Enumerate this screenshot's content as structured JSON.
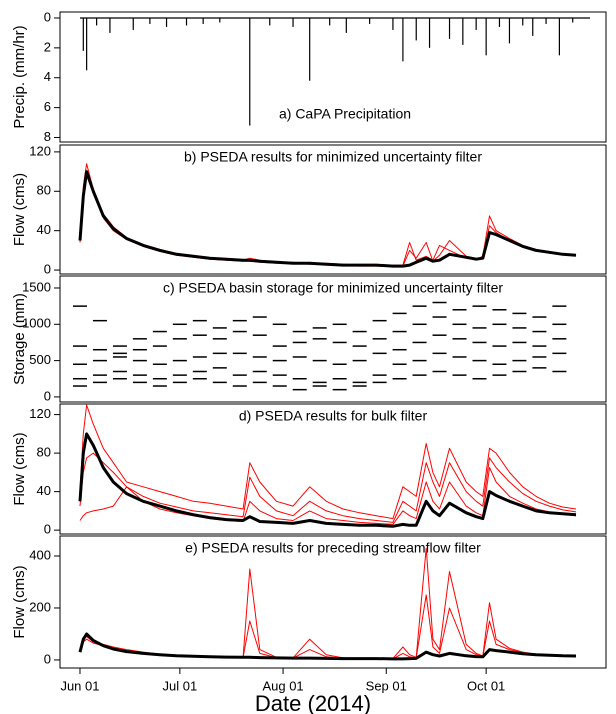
{
  "chart_data": [
    {
      "type": "spike",
      "title": "a) CaPA Precipitation",
      "ylabel": "Precip. (mm/hr)",
      "color": "#000000",
      "xlim": [
        "2014-05-26",
        "2014-11-06"
      ],
      "ylim": [
        8.3,
        -0.4
      ],
      "yticks": [
        0,
        2,
        4,
        6,
        8
      ],
      "x": [
        "2014-06-02",
        "2014-06-03",
        "2014-06-06",
        "2014-06-10",
        "2014-06-17",
        "2014-06-22",
        "2014-06-27",
        "2014-07-03",
        "2014-07-08",
        "2014-07-13",
        "2014-07-22",
        "2014-07-28",
        "2014-08-04",
        "2014-08-09",
        "2014-08-15",
        "2014-08-20",
        "2014-08-27",
        "2014-09-03",
        "2014-09-06",
        "2014-09-10",
        "2014-09-14",
        "2014-09-20",
        "2014-09-24",
        "2014-09-28",
        "2014-10-01",
        "2014-10-05",
        "2014-10-08",
        "2014-10-12",
        "2014-10-15",
        "2014-10-19",
        "2014-10-23",
        "2014-10-27"
      ],
      "values": [
        2.2,
        3.5,
        0.5,
        1.0,
        0.8,
        0.4,
        0.6,
        0.5,
        0.4,
        0.3,
        7.2,
        0.5,
        0.6,
        4.2,
        0.5,
        1.0,
        0.4,
        0.8,
        2.9,
        1.5,
        2.0,
        1.4,
        1.8,
        0.8,
        2.5,
        0.6,
        1.7,
        0.5,
        1.2,
        0.4,
        2.5,
        0.3
      ]
    },
    {
      "type": "line",
      "title": "b) PSEDA results for minimized uncertainty filter",
      "ylabel": "Flow (cms)",
      "xlim": [
        "2014-05-26",
        "2014-11-06"
      ],
      "ylim": [
        -4,
        127
      ],
      "yticks": [
        0,
        40,
        80,
        120
      ],
      "x": [
        "2014-06-01",
        "2014-06-02",
        "2014-06-03",
        "2014-06-05",
        "2014-06-08",
        "2014-06-11",
        "2014-06-15",
        "2014-06-20",
        "2014-06-25",
        "2014-06-30",
        "2014-07-05",
        "2014-07-10",
        "2014-07-15",
        "2014-07-20",
        "2014-07-22",
        "2014-07-25",
        "2014-07-30",
        "2014-08-04",
        "2014-08-09",
        "2014-08-14",
        "2014-08-19",
        "2014-08-24",
        "2014-08-29",
        "2014-09-03",
        "2014-09-06",
        "2014-09-08",
        "2014-09-10",
        "2014-09-13",
        "2014-09-15",
        "2014-09-17",
        "2014-09-20",
        "2014-09-25",
        "2014-09-28",
        "2014-09-30",
        "2014-10-02",
        "2014-10-04",
        "2014-10-08",
        "2014-10-12",
        "2014-10-16",
        "2014-10-20",
        "2014-10-24",
        "2014-10-28"
      ],
      "series": [
        {
          "color": "#ff0000",
          "width": 1,
          "values": [
            32,
            85,
            108,
            82,
            57,
            44,
            33,
            26,
            21,
            17,
            14,
            12,
            11,
            10,
            12,
            10,
            8,
            8,
            7,
            7,
            6,
            5,
            5,
            5,
            5,
            28,
            10,
            14,
            10,
            25,
            20,
            12,
            11,
            14,
            55,
            40,
            32,
            25,
            21,
            18,
            16,
            15
          ]
        },
        {
          "color": "#ff0000",
          "width": 1,
          "values": [
            28,
            70,
            96,
            78,
            53,
            40,
            31,
            24,
            19,
            15,
            13,
            11,
            10,
            9,
            9,
            8,
            7,
            7,
            6,
            6,
            5,
            4,
            4,
            4,
            4,
            20,
            12,
            28,
            9,
            15,
            30,
            14,
            12,
            13,
            45,
            38,
            30,
            24,
            20,
            17,
            16,
            15
          ]
        },
        {
          "color": "#000000",
          "width": 3,
          "values": [
            30,
            75,
            100,
            80,
            55,
            42,
            32,
            25,
            20,
            16,
            14,
            12,
            11,
            10,
            10,
            9,
            8,
            7,
            7,
            6,
            5,
            5,
            5,
            4,
            4,
            5,
            8,
            12,
            9,
            10,
            16,
            13,
            11,
            12,
            38,
            36,
            30,
            24,
            20,
            18,
            16,
            15
          ]
        }
      ]
    },
    {
      "type": "scatter",
      "title": "c) PSEDA basin storage for minimized uncertainty filter",
      "ylabel": "Storage (mm)",
      "xlim": [
        "2014-05-26",
        "2014-11-06"
      ],
      "ylim": [
        -70,
        1665
      ],
      "yticks": [
        0,
        500,
        1000,
        1500
      ],
      "x": [
        "2014-06-01",
        "2014-06-07",
        "2014-06-13",
        "2014-06-19",
        "2014-06-25",
        "2014-07-01",
        "2014-07-07",
        "2014-07-13",
        "2014-07-19",
        "2014-07-25",
        "2014-07-31",
        "2014-08-06",
        "2014-08-12",
        "2014-08-18",
        "2014-08-24",
        "2014-08-30",
        "2014-09-05",
        "2014-09-11",
        "2014-09-17",
        "2014-09-23",
        "2014-09-29",
        "2014-10-05",
        "2014-10-11",
        "2014-10-17",
        "2014-10-23"
      ],
      "series": [
        {
          "color": "#000000",
          "values": [
            1250,
            1050,
            700,
            800,
            900,
            1000,
            1050,
            950,
            1050,
            1100,
            1000,
            900,
            950,
            1000,
            900,
            1050,
            1150,
            1250,
            1300,
            1200,
            1250,
            1200,
            1150,
            1100,
            1250
          ]
        },
        {
          "color": "#000000",
          "values": [
            700,
            650,
            600,
            650,
            700,
            800,
            850,
            800,
            900,
            850,
            700,
            750,
            800,
            750,
            700,
            800,
            900,
            1000,
            1100,
            1000,
            950,
            1000,
            950,
            900,
            1000
          ]
        },
        {
          "color": "#000000",
          "values": [
            450,
            500,
            550,
            500,
            450,
            500,
            550,
            600,
            600,
            550,
            500,
            550,
            500,
            450,
            500,
            600,
            650,
            750,
            850,
            800,
            750,
            700,
            750,
            700,
            800
          ]
        },
        {
          "color": "#000000",
          "values": [
            250,
            300,
            350,
            300,
            250,
            300,
            350,
            400,
            300,
            350,
            300,
            250,
            200,
            250,
            200,
            300,
            450,
            500,
            600,
            550,
            500,
            450,
            500,
            550,
            600
          ]
        },
        {
          "color": "#000000",
          "values": [
            150,
            200,
            250,
            200,
            150,
            200,
            250,
            200,
            150,
            200,
            150,
            100,
            150,
            100,
            150,
            200,
            250,
            300,
            350,
            300,
            250,
            300,
            350,
            400,
            350
          ]
        }
      ]
    },
    {
      "type": "line",
      "title": "d) PSEDA results for bulk filter",
      "ylabel": "Flow (cms)",
      "xlim": [
        "2014-05-26",
        "2014-11-06"
      ],
      "ylim": [
        -4,
        131
      ],
      "yticks": [
        0,
        40,
        80,
        120
      ],
      "x": [
        "2014-06-01",
        "2014-06-02",
        "2014-06-03",
        "2014-06-05",
        "2014-06-08",
        "2014-06-11",
        "2014-06-15",
        "2014-06-20",
        "2014-06-25",
        "2014-06-30",
        "2014-07-05",
        "2014-07-10",
        "2014-07-15",
        "2014-07-20",
        "2014-07-22",
        "2014-07-25",
        "2014-07-30",
        "2014-08-04",
        "2014-08-09",
        "2014-08-14",
        "2014-08-19",
        "2014-08-24",
        "2014-08-29",
        "2014-09-03",
        "2014-09-06",
        "2014-09-08",
        "2014-09-10",
        "2014-09-13",
        "2014-09-15",
        "2014-09-17",
        "2014-09-20",
        "2014-09-25",
        "2014-09-28",
        "2014-09-30",
        "2014-10-02",
        "2014-10-04",
        "2014-10-08",
        "2014-10-12",
        "2014-10-16",
        "2014-10-20",
        "2014-10-24",
        "2014-10-28"
      ],
      "series": [
        {
          "color": "#ff0000",
          "width": 1,
          "values": [
            40,
            100,
            130,
            110,
            85,
            70,
            50,
            45,
            40,
            35,
            30,
            28,
            25,
            22,
            70,
            50,
            30,
            25,
            45,
            30,
            22,
            18,
            15,
            12,
            45,
            40,
            35,
            90,
            60,
            45,
            85,
            50,
            40,
            35,
            85,
            80,
            60,
            45,
            35,
            28,
            24,
            22
          ]
        },
        {
          "color": "#ff0000",
          "width": 1,
          "values": [
            25,
            60,
            75,
            80,
            70,
            60,
            45,
            35,
            28,
            24,
            20,
            18,
            16,
            14,
            55,
            35,
            20,
            15,
            30,
            20,
            15,
            12,
            10,
            8,
            30,
            25,
            20,
            70,
            50,
            35,
            70,
            40,
            30,
            25,
            75,
            65,
            50,
            38,
            30,
            25,
            21,
            19
          ]
        },
        {
          "color": "#ff0000",
          "width": 1,
          "values": [
            10,
            15,
            18,
            20,
            22,
            25,
            45,
            30,
            22,
            18,
            15,
            12,
            10,
            9,
            30,
            20,
            12,
            10,
            20,
            12,
            10,
            8,
            7,
            6,
            20,
            15,
            12,
            50,
            30,
            22,
            50,
            25,
            18,
            15,
            65,
            50,
            35,
            28,
            22,
            19,
            17,
            15
          ]
        },
        {
          "color": "#000000",
          "width": 3,
          "values": [
            30,
            80,
            100,
            88,
            65,
            50,
            38,
            30,
            25,
            20,
            16,
            13,
            11,
            10,
            14,
            9,
            8,
            7,
            10,
            7,
            6,
            5,
            5,
            4,
            6,
            5,
            5,
            30,
            20,
            15,
            28,
            18,
            14,
            12,
            40,
            36,
            30,
            25,
            20,
            18,
            17,
            16
          ]
        }
      ]
    },
    {
      "type": "line",
      "title": "e) PSEDA results for preceding streamflow filter",
      "ylabel": "Flow (cms)",
      "xlabel": "Date (2014)",
      "xlim": [
        "2014-05-26",
        "2014-11-06"
      ],
      "ylim": [
        -31,
        477
      ],
      "yticks": [
        0,
        200,
        400
      ],
      "xticks": [
        {
          "value": "2014-06-01",
          "label": "Jun 01"
        },
        {
          "value": "2014-07-01",
          "label": "Jul 01"
        },
        {
          "value": "2014-08-01",
          "label": "Aug 01"
        },
        {
          "value": "2014-09-01",
          "label": "Sep 01"
        },
        {
          "value": "2014-10-01",
          "label": "Oct 01"
        }
      ],
      "x": [
        "2014-06-01",
        "2014-06-02",
        "2014-06-03",
        "2014-06-05",
        "2014-06-08",
        "2014-06-11",
        "2014-06-15",
        "2014-06-20",
        "2014-06-25",
        "2014-06-30",
        "2014-07-05",
        "2014-07-10",
        "2014-07-15",
        "2014-07-20",
        "2014-07-22",
        "2014-07-25",
        "2014-07-30",
        "2014-08-04",
        "2014-08-09",
        "2014-08-14",
        "2014-08-19",
        "2014-08-24",
        "2014-08-29",
        "2014-09-03",
        "2014-09-06",
        "2014-09-08",
        "2014-09-10",
        "2014-09-13",
        "2014-09-15",
        "2014-09-17",
        "2014-09-20",
        "2014-09-25",
        "2014-09-28",
        "2014-09-30",
        "2014-10-02",
        "2014-10-04",
        "2014-10-08",
        "2014-10-12",
        "2014-10-16",
        "2014-10-20",
        "2014-10-24",
        "2014-10-28"
      ],
      "series": [
        {
          "color": "#ff0000",
          "width": 1,
          "values": [
            35,
            85,
            90,
            70,
            60,
            50,
            40,
            30,
            22,
            18,
            15,
            13,
            12,
            11,
            350,
            40,
            10,
            8,
            80,
            20,
            8,
            6,
            5,
            5,
            50,
            20,
            10,
            430,
            80,
            40,
            340,
            60,
            25,
            15,
            220,
            80,
            45,
            30,
            22,
            18,
            16,
            15
          ]
        },
        {
          "color": "#ff0000",
          "width": 1,
          "values": [
            30,
            70,
            80,
            65,
            55,
            45,
            35,
            28,
            20,
            16,
            14,
            12,
            11,
            10,
            150,
            25,
            9,
            7,
            40,
            12,
            7,
            5,
            5,
            4,
            25,
            12,
            8,
            250,
            50,
            25,
            200,
            40,
            20,
            13,
            150,
            60,
            40,
            28,
            20,
            17,
            15,
            14
          ]
        },
        {
          "color": "#000000",
          "width": 3,
          "values": [
            30,
            80,
            100,
            75,
            55,
            42,
            32,
            25,
            20,
            16,
            14,
            12,
            11,
            10,
            10,
            9,
            8,
            7,
            7,
            6,
            5,
            5,
            5,
            4,
            4,
            5,
            6,
            30,
            20,
            15,
            25,
            16,
            13,
            12,
            40,
            36,
            30,
            24,
            20,
            18,
            16,
            15
          ]
        }
      ]
    }
  ]
}
